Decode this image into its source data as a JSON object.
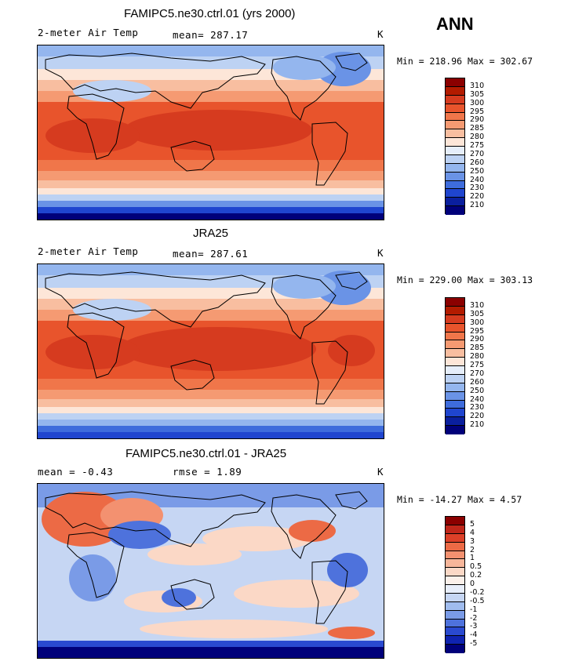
{
  "season": "ANN",
  "panels": [
    {
      "title": "FAMIPC5.ne30.ctrl.01 (yrs 2000)",
      "left_label": "2-meter Air Temp",
      "center_label": "mean=  287.17",
      "right_label": "K",
      "minmax": "Min = 218.96 Max = 302.67",
      "palette": "temp",
      "colorbar_labels": [
        "310",
        "305",
        "300",
        "295",
        "290",
        "285",
        "280",
        "275",
        "270",
        "260",
        "250",
        "240",
        "230",
        "220",
        "210"
      ]
    },
    {
      "title": "JRA25",
      "left_label": "2-meter Air Temp",
      "center_label": "mean=  287.61",
      "right_label": "K",
      "minmax": "Min = 229.00 Max = 303.13",
      "palette": "temp",
      "colorbar_labels": [
        "310",
        "305",
        "300",
        "295",
        "290",
        "285",
        "280",
        "275",
        "270",
        "260",
        "250",
        "240",
        "230",
        "220",
        "210"
      ]
    },
    {
      "title": "FAMIPC5.ne30.ctrl.01 - JRA25",
      "left_label": "mean =   -0.43",
      "center_label": "rmse =    1.89",
      "right_label": "K",
      "minmax": "Min = -14.27 Max =   4.57",
      "palette": "diff",
      "colorbar_labels": [
        "5",
        "4",
        "3",
        "2",
        "1",
        "0.5",
        "0.2",
        "0",
        "-0.2",
        "-0.5",
        "-1",
        "-2",
        "-3",
        "-4",
        "-5"
      ]
    }
  ],
  "palettes": {
    "temp": [
      "#8b0000",
      "#b31b00",
      "#d63b1f",
      "#e8542c",
      "#f0764a",
      "#f59a72",
      "#f8bea0",
      "#fde6d8",
      "#e6eefa",
      "#bdd2f3",
      "#94b6ee",
      "#6a93e6",
      "#3e6cdc",
      "#1f45cf",
      "#0a1f9e",
      "#00007a"
    ],
    "diff": [
      "#8b0000",
      "#c0261a",
      "#dc4028",
      "#ec6a45",
      "#f39170",
      "#f7b69a",
      "#fbd8c6",
      "#fbf0ea",
      "#e8eefa",
      "#c6d6f3",
      "#a0bcee",
      "#7a9be7",
      "#4e72dc",
      "#2a4ad0",
      "#0f23b0",
      "#00007a"
    ]
  },
  "chart_data": [
    {
      "type": "heatmap",
      "title": "FAMIPC5.ne30.ctrl.01 (yrs 2000)",
      "variable": "2-meter Air Temp",
      "units": "K",
      "mean": 287.17,
      "min": 218.96,
      "max": 302.67,
      "contour_levels": [
        210,
        220,
        230,
        240,
        250,
        260,
        270,
        275,
        280,
        285,
        290,
        295,
        300,
        305,
        310
      ]
    },
    {
      "type": "heatmap",
      "title": "JRA25",
      "variable": "2-meter Air Temp",
      "units": "K",
      "mean": 287.61,
      "min": 229.0,
      "max": 303.13,
      "contour_levels": [
        210,
        220,
        230,
        240,
        250,
        260,
        270,
        275,
        280,
        285,
        290,
        295,
        300,
        305,
        310
      ]
    },
    {
      "type": "heatmap",
      "title": "FAMIPC5.ne30.ctrl.01 - JRA25",
      "units": "K",
      "mean": -0.43,
      "rmse": 1.89,
      "min": -14.27,
      "max": 4.57,
      "contour_levels": [
        -5,
        -4,
        -3,
        -2,
        -1,
        -0.5,
        -0.2,
        0,
        0.2,
        0.5,
        1,
        2,
        3,
        4,
        5
      ]
    }
  ]
}
